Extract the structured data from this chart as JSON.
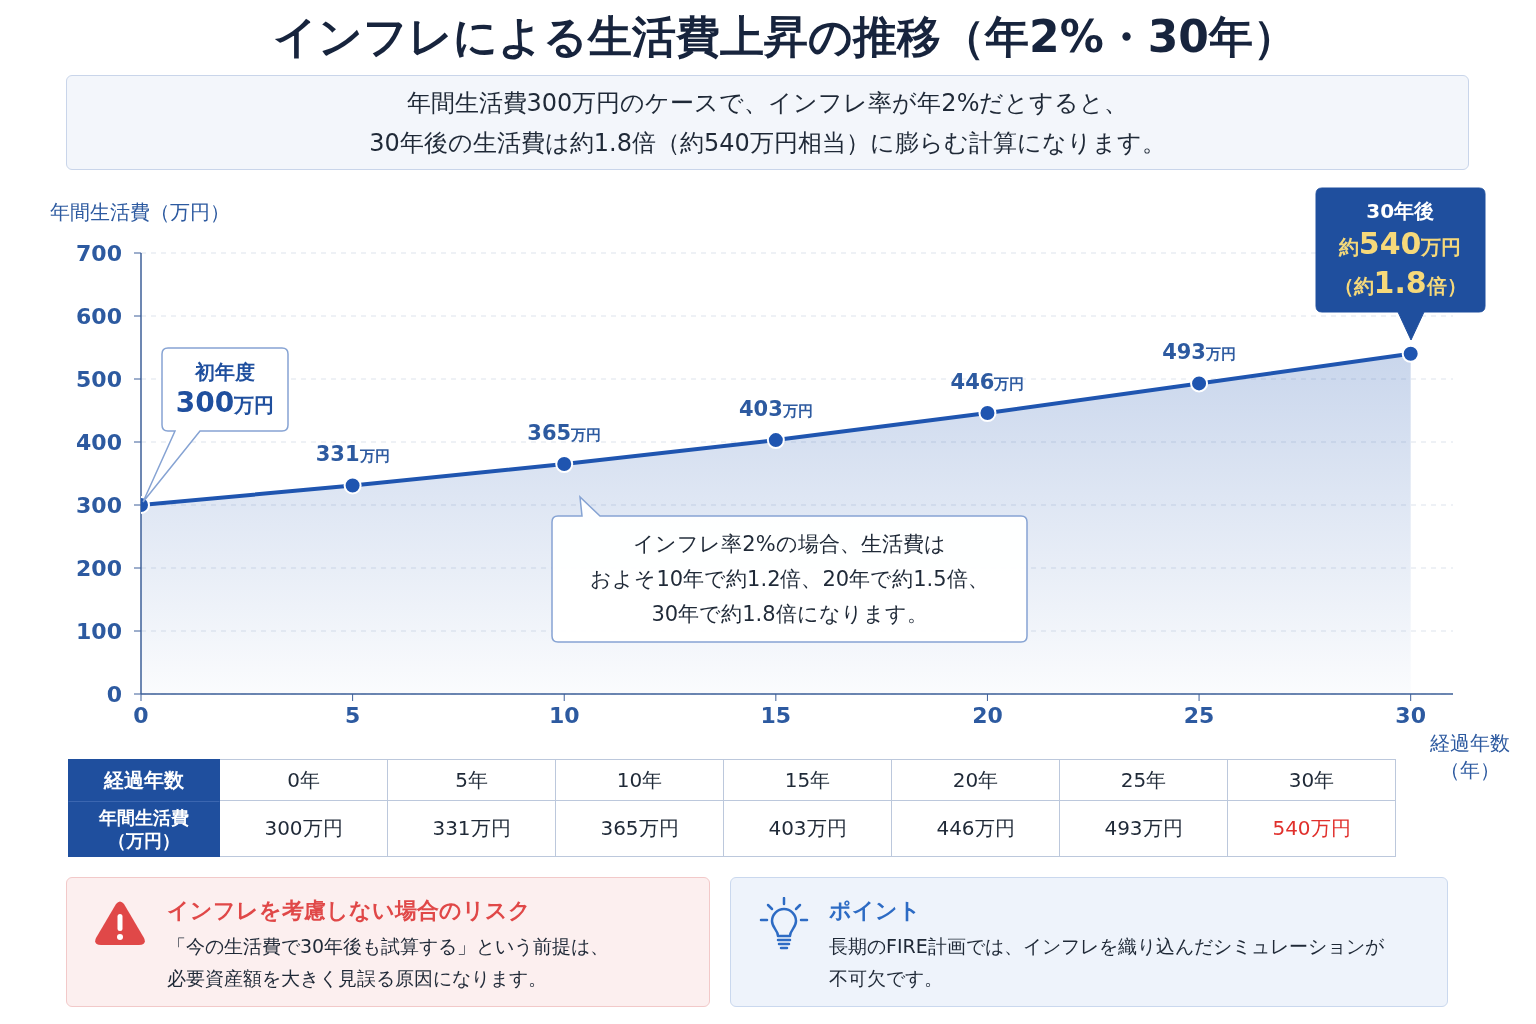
{
  "chart_data": {
    "type": "area",
    "title": "インフレによる生活費上昇の推移（年2%・30年）",
    "subtitle": "年間生活費300万円のケースで、インフレ率が年2%だとすると、30年後の生活費は約1.8倍（約540万円相当）に膨らむ計算になります。",
    "xlabel": "経過年数（年）",
    "ylabel": "年間生活費（万円）",
    "x": [
      0,
      5,
      10,
      15,
      20,
      25,
      30
    ],
    "values": [
      300,
      331,
      365,
      403,
      446,
      493,
      540
    ],
    "value_labels": [
      null,
      "331万円",
      "365万円",
      "403万円",
      "446万円",
      "493万円",
      null
    ],
    "color": "#1f55b0",
    "xlim": [
      0,
      31
    ],
    "xticks": [
      0,
      5,
      10,
      15,
      20,
      25,
      30
    ],
    "ylim": [
      0,
      700
    ],
    "yticks": [
      0,
      100,
      200,
      300,
      400,
      500,
      600,
      700
    ],
    "grid": "y",
    "marker": "circle",
    "line_style": "solid",
    "annotations": [
      "初年度300万円",
      "30年後約540万円（約1.8倍）",
      "インフレ率2%の場合、生活費はおよそ10年で約1.2倍、20年で約1.5倍、30年で約1.8倍になります。",
      "経過年数",
      "0年",
      "5年",
      "10年",
      "15年",
      "20年",
      "25年",
      "30年",
      "年間生活費（万円）",
      "300万円",
      "331万円",
      "365万円",
      "403万円",
      "446万円",
      "493万円",
      "540万円",
      "インフレを考慮しない場合のリスク",
      "「今の生活費で30年後も試算する」という前提は、必要資産額を大きく見誤る原因になります。",
      "ポイント",
      "長期のFIRE計画では、インフレを織り込んだシミュレーションが不可欠です。"
    ]
  }
}
